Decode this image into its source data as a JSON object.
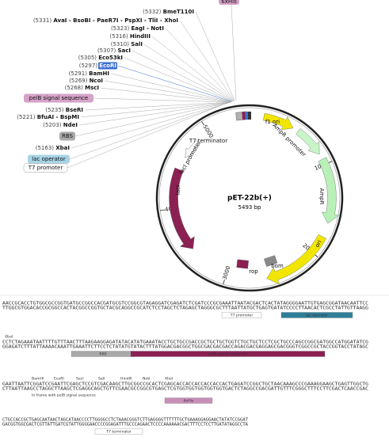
{
  "map": {
    "name": "pET-22b(+)",
    "size": "5493 bp",
    "top_tag": "6xHis",
    "enzymes": [
      {
        "pos": "(5332)",
        "name": "BmeT110I"
      },
      {
        "pos": "(5331)",
        "name": "AvaI - BsoBI - PaeR7I - PspXI - TliI - XhoI"
      },
      {
        "pos": "(5323)",
        "name": "EagI - NotI"
      },
      {
        "pos": "(5316)",
        "name": "HindIII"
      },
      {
        "pos": "(5310)",
        "name": "SalI"
      },
      {
        "pos": "(5307)",
        "name": "SacI"
      },
      {
        "pos": "(5305)",
        "name": "Eco53kI"
      },
      {
        "pos": "(5297)",
        "name": "EcoRI"
      },
      {
        "pos": "(5291)",
        "name": "BamHI"
      },
      {
        "pos": "(5269)",
        "name": "NcoI"
      },
      {
        "pos": "(5268)",
        "name": "MscI"
      },
      {
        "pos": "(5235)",
        "name": "BseRI"
      },
      {
        "pos": "(5221)",
        "name": "BfuAI - BspMI"
      },
      {
        "pos": "(5203)",
        "name": "NdeI"
      },
      {
        "pos": "(5163)",
        "name": "XbaI"
      }
    ],
    "tags": [
      "pelB signal sequence",
      "RBS",
      "lac operator",
      "T7 promoter"
    ],
    "features": [
      "T7 terminator",
      "f1 ori",
      "AmpR promoter",
      "AmpR",
      "ori",
      "rop",
      "bom",
      "lacI",
      "lacI promoter"
    ],
    "ticks": [
      "1000",
      "2000",
      "3000",
      "4000",
      "5000"
    ]
  },
  "sequence": {
    "blocks": [
      {
        "lines": [
          "AACCGCACCTGTGGCGCCGGTGATGCCGGCCACGATGCGTCCGGCGTAGAGGATCGAGATCTCGATCCCGCGAAATTAATACGACTCACTATAGGGGAATTGTGAGCGGATAACAATTCC",
          "TTGGCGTGGACACCGCGGCCACTACGGCCGGTGCTACGCAGGCCGCATCTCCTAGCTCTAGAGCTAGGGCGCTTTAATTATGCTGAGTGATATCCCCTTAACACTCGCCTATTGTTAAGG"
        ],
        "features": [
          "T7 promoter",
          "lac operator"
        ]
      },
      {
        "lines": [
          "CCTCTAGAAATAATTTTGTTTAACTTTAAGAAGGAGATATACATATGAAATACCTGCTGCCGACCGCTGCTGCTGGTCTGCTGCTCCTCGCTGCCCAGCCGGCGATGGCCATGGATATCG",
          "GGAGATCTTTATTAAAACAAATTGAAATTCTTCCTCTATATGTATACTTTATGGACGACGGCTGGCGACGACGACCAGACGACGAGGAGCGACGGGTCGGCCGCTACCGGTACCTATAGC"
        ],
        "label": "XbaI",
        "features": [
          "RBS",
          "pelB signal sequence"
        ]
      },
      {
        "lines": [
          "GAATTAATTCGGATCCGAATTCGAGCTCCGTCGACAAGCTTGCGGCCGCACTCGAGCACCACCACCACCACCACTGAGATCCGGCTGCTAACAAAGCCCGAAAGGAAGCTGAGTTGGCTG",
          "CTTAATTAAGCCTAGGCTTAAGCTCGAGGCAGCTGTTCGAACGCCGGCGTGAGCTCGTGGTGGTGGTGGTGGTGACTCTAGGCCGACGATTGTTTCGGGCTTTCCTTCGACTCAACCGAC"
        ],
        "enzymes": [
          "BamHI",
          "EcoRI",
          "SacI",
          "SalI",
          "HindIII",
          "NotI",
          "XhoI"
        ],
        "note": "In frame with pelB signal sequence",
        "features": [
          "6xHis"
        ]
      },
      {
        "lines": [
          "CTGCCACCGCTGAGCAATAACTAGCATAACCCCTTGGGGCCTCTAAACGGGTCTTGAGGGGTTTTTTGCTGAAAGGAGGAACTATATCCGGAT",
          "GACGGTGGCGACTCGTTATTGATCGTATTGGGGAACCCCGGAGATTTGCCCAGAACTCCCCAAAAAACGACTTTCCTCCTTGATATAGGCCTA"
        ],
        "features": [
          "T7 terminator"
        ]
      }
    ]
  }
}
